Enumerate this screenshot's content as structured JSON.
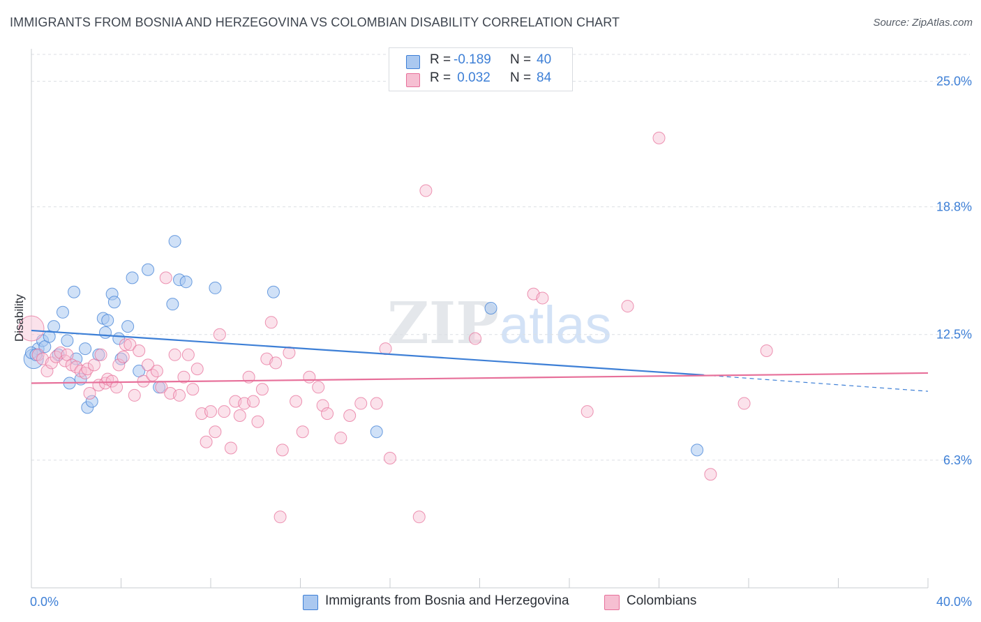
{
  "title": "IMMIGRANTS FROM BOSNIA AND HERZEGOVINA VS COLOMBIAN DISABILITY CORRELATION CHART",
  "source": "Source: ZipAtlas.com",
  "watermark": {
    "zip": "ZIP",
    "atlas": "atlas"
  },
  "colors": {
    "blue": "#3d7fd6",
    "pink": "#e7709a",
    "blue_fill": "#aac8f0",
    "pink_fill": "#f6bfd2",
    "axis_text": "#3d7fd6"
  },
  "legend": {
    "rows": [
      {
        "r_label": "R = ",
        "r_value": "-0.189",
        "n_label": "N = ",
        "n_value": "40"
      },
      {
        "r_label": "R = ",
        "r_value": " 0.032",
        "n_label": "N = ",
        "n_value": "84"
      }
    ]
  },
  "bottom_legend": [
    "Immigrants from Bosnia and Herzegovina",
    "Colombians"
  ],
  "chart_data": {
    "type": "scatter",
    "xlabel": "",
    "ylabel": "Disability",
    "xlim": [
      0,
      40
    ],
    "ylim": [
      0,
      26.6
    ],
    "x_tick_labels": [
      "0.0%",
      "40.0%"
    ],
    "y_ticks": [
      6.3,
      12.5,
      18.8,
      25.0
    ],
    "y_tick_labels": [
      "6.3%",
      "12.5%",
      "18.8%",
      "25.0%"
    ],
    "grid": "horizontal dashed",
    "legend_position": "top-center",
    "series": [
      {
        "name": "Immigrants from Bosnia and Herzegovina",
        "r": -0.189,
        "n": 40,
        "trend": {
          "x": [
            0,
            30
          ],
          "y": [
            12.7,
            10.5
          ],
          "dashed_to": [
            40,
            9.7
          ]
        },
        "points": [
          [
            0.1,
            11.3
          ],
          [
            0.3,
            11.8
          ],
          [
            0.5,
            12.2
          ],
          [
            0.6,
            11.9
          ],
          [
            0.8,
            12.4
          ],
          [
            1.0,
            12.9
          ],
          [
            1.2,
            11.5
          ],
          [
            1.4,
            13.6
          ],
          [
            1.6,
            12.2
          ],
          [
            1.7,
            10.1
          ],
          [
            1.9,
            14.6
          ],
          [
            2.0,
            11.3
          ],
          [
            2.2,
            10.3
          ],
          [
            2.4,
            11.8
          ],
          [
            2.5,
            8.9
          ],
          [
            2.7,
            9.2
          ],
          [
            3.0,
            11.5
          ],
          [
            3.2,
            13.3
          ],
          [
            3.3,
            12.6
          ],
          [
            3.4,
            13.2
          ],
          [
            3.6,
            14.5
          ],
          [
            3.7,
            14.1
          ],
          [
            3.9,
            12.3
          ],
          [
            4.0,
            11.3
          ],
          [
            4.3,
            12.9
          ],
          [
            4.5,
            15.3
          ],
          [
            4.8,
            10.7
          ],
          [
            5.2,
            15.7
          ],
          [
            5.7,
            9.9
          ],
          [
            6.3,
            14.0
          ],
          [
            6.4,
            17.1
          ],
          [
            6.6,
            15.2
          ],
          [
            6.9,
            15.1
          ],
          [
            8.2,
            14.8
          ],
          [
            10.8,
            14.6
          ],
          [
            15.4,
            7.7
          ],
          [
            20.5,
            13.8
          ],
          [
            29.7,
            6.8
          ],
          [
            0.0,
            11.6
          ],
          [
            0.2,
            11.5
          ]
        ]
      },
      {
        "name": "Colombians",
        "r": 0.032,
        "n": 84,
        "trend": {
          "x": [
            0,
            40
          ],
          "y": [
            10.1,
            10.6
          ]
        },
        "points": [
          [
            0.0,
            12.8
          ],
          [
            0.3,
            11.5
          ],
          [
            0.5,
            11.3
          ],
          [
            0.7,
            10.7
          ],
          [
            0.9,
            11.1
          ],
          [
            1.1,
            11.4
          ],
          [
            1.3,
            11.6
          ],
          [
            1.5,
            11.2
          ],
          [
            1.6,
            11.5
          ],
          [
            1.8,
            11.0
          ],
          [
            2.0,
            10.9
          ],
          [
            2.2,
            10.7
          ],
          [
            2.4,
            10.6
          ],
          [
            2.5,
            10.8
          ],
          [
            2.6,
            9.6
          ],
          [
            2.8,
            11.0
          ],
          [
            3.0,
            10.0
          ],
          [
            3.1,
            11.5
          ],
          [
            3.3,
            10.1
          ],
          [
            3.4,
            10.3
          ],
          [
            3.6,
            10.2
          ],
          [
            3.8,
            9.9
          ],
          [
            3.9,
            11.0
          ],
          [
            4.1,
            11.4
          ],
          [
            4.2,
            12.0
          ],
          [
            4.4,
            12.0
          ],
          [
            4.6,
            9.5
          ],
          [
            4.8,
            11.7
          ],
          [
            5.0,
            10.2
          ],
          [
            5.2,
            11.0
          ],
          [
            5.4,
            10.5
          ],
          [
            5.6,
            10.7
          ],
          [
            5.8,
            9.9
          ],
          [
            6.0,
            15.3
          ],
          [
            6.2,
            9.6
          ],
          [
            6.4,
            11.5
          ],
          [
            6.6,
            9.5
          ],
          [
            6.8,
            10.4
          ],
          [
            7.0,
            11.5
          ],
          [
            7.2,
            9.8
          ],
          [
            7.4,
            10.8
          ],
          [
            7.6,
            8.6
          ],
          [
            7.8,
            7.2
          ],
          [
            8.0,
            8.7
          ],
          [
            8.2,
            7.7
          ],
          [
            8.4,
            12.5
          ],
          [
            8.6,
            8.7
          ],
          [
            8.9,
            6.9
          ],
          [
            9.1,
            9.2
          ],
          [
            9.3,
            8.5
          ],
          [
            9.5,
            9.1
          ],
          [
            9.7,
            10.4
          ],
          [
            9.9,
            9.2
          ],
          [
            10.1,
            8.2
          ],
          [
            10.3,
            9.8
          ],
          [
            10.5,
            11.3
          ],
          [
            10.7,
            13.1
          ],
          [
            10.9,
            11.1
          ],
          [
            11.2,
            6.8
          ],
          [
            11.5,
            11.6
          ],
          [
            11.8,
            9.2
          ],
          [
            12.1,
            7.7
          ],
          [
            12.4,
            10.4
          ],
          [
            12.8,
            9.9
          ],
          [
            13.0,
            9.0
          ],
          [
            13.2,
            8.6
          ],
          [
            13.8,
            7.4
          ],
          [
            14.2,
            8.5
          ],
          [
            14.7,
            9.1
          ],
          [
            15.4,
            9.1
          ],
          [
            15.8,
            11.8
          ],
          [
            16.0,
            6.4
          ],
          [
            17.6,
            19.6
          ],
          [
            19.8,
            12.3
          ],
          [
            22.4,
            14.5
          ],
          [
            22.8,
            14.3
          ],
          [
            24.8,
            8.7
          ],
          [
            26.6,
            13.9
          ],
          [
            28.0,
            22.2
          ],
          [
            30.3,
            5.6
          ],
          [
            31.8,
            9.1
          ],
          [
            32.8,
            11.7
          ],
          [
            11.1,
            3.5
          ],
          [
            17.3,
            3.5
          ]
        ]
      }
    ]
  }
}
